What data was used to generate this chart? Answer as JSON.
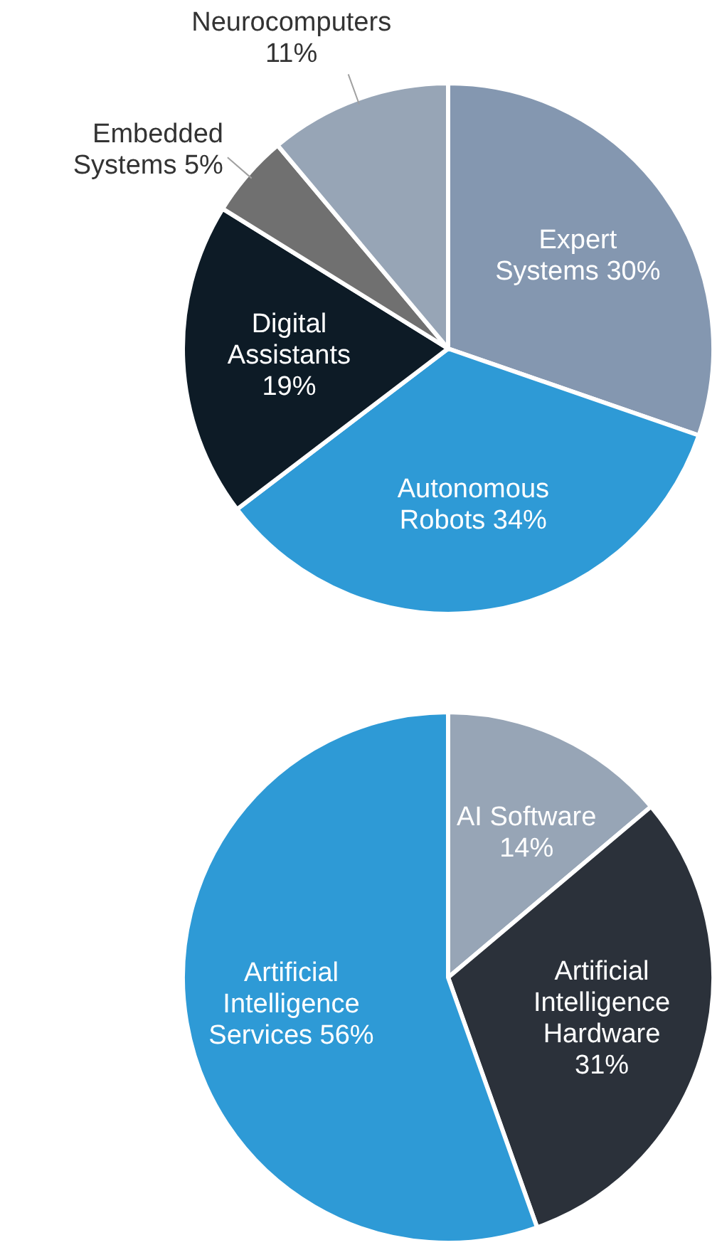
{
  "chart_data": [
    {
      "type": "pie",
      "categories": [
        "Expert Systems",
        "Autonomous Robots",
        "Digital Assistants",
        "Embedded Systems",
        "Neurocomputers"
      ],
      "values": [
        30,
        34,
        19,
        5,
        11
      ],
      "colors": [
        "#8497b0",
        "#2e9ad6",
        "#0d1b26",
        "#707070",
        "#97a5b6"
      ],
      "value_labels": [
        "30%",
        "34%",
        "19%",
        "5%",
        "11%"
      ]
    },
    {
      "type": "pie",
      "categories": [
        "AI Software",
        "Artificial Intelligence Hardware",
        "Artificial Intelligence Services"
      ],
      "values": [
        14,
        31,
        56
      ],
      "colors": [
        "#97a5b6",
        "#2b313a",
        "#2e9ad6"
      ],
      "value_labels": [
        "14%",
        "31%",
        "56%"
      ]
    }
  ]
}
